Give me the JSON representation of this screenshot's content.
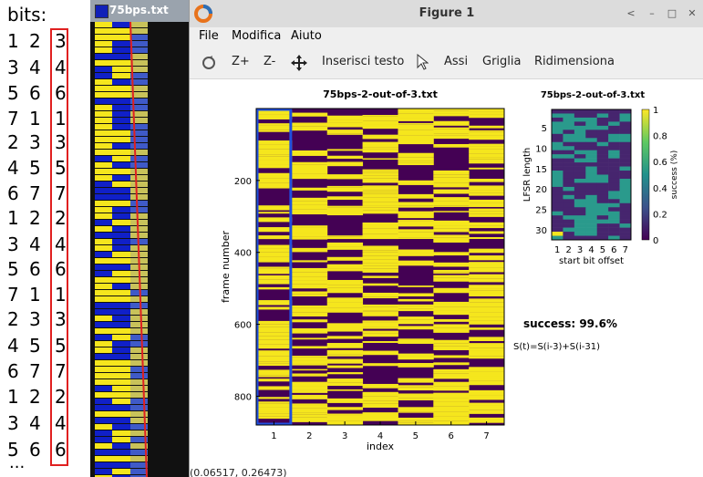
{
  "annotation": {
    "title": "bits:",
    "rows": [
      [
        "1",
        "2",
        "3"
      ],
      [
        "3",
        "4",
        "4"
      ],
      [
        "5",
        "6",
        "6"
      ],
      [
        "7",
        "1",
        "1"
      ],
      [
        "2",
        "3",
        "3"
      ],
      [
        "4",
        "5",
        "5"
      ],
      [
        "6",
        "7",
        "7"
      ],
      [
        "1",
        "2",
        "2"
      ],
      [
        "3",
        "4",
        "4"
      ],
      [
        "5",
        "6",
        "6"
      ],
      [
        "7",
        "1",
        "1"
      ],
      [
        "2",
        "3",
        "3"
      ],
      [
        "4",
        "5",
        "5"
      ],
      [
        "6",
        "7",
        "7"
      ],
      [
        "1",
        "2",
        "2"
      ],
      [
        "3",
        "4",
        "4"
      ],
      [
        "5",
        "6",
        "6"
      ]
    ],
    "ellipsis": "..."
  },
  "side_window": {
    "title": "75bps.txt"
  },
  "figure_window": {
    "title": "Figure 1",
    "controls": {
      "back": "<",
      "minimize": "–",
      "maximize": "□",
      "close": "✕"
    },
    "menu": [
      "File",
      "Modifica",
      "Aiuto"
    ],
    "toolbar": {
      "z_plus": "Z+",
      "z_minus": "Z-",
      "insert_text": "Inserisci testo",
      "axes": "Assi",
      "grid": "Griglia",
      "resize": "Ridimensiona"
    },
    "status": "(0.06517, 0.26473)"
  },
  "colors": {
    "yellow": "#f5e61d",
    "purple": "#3b0f56",
    "teal": "#2a9a8c",
    "dark_purple": "#440154",
    "highlight_blue": "#1f4fe0",
    "red": "#e02020"
  },
  "chart_data": [
    {
      "type": "heatmap",
      "title": "75bps-2-out-of-3.txt",
      "xlabel": "index",
      "ylabel": "frame number",
      "x_ticks": [
        "1",
        "2",
        "3",
        "4",
        "5",
        "6",
        "7"
      ],
      "y_ticks": [
        "200",
        "400",
        "600",
        "800"
      ],
      "y_range": [
        0,
        880
      ],
      "highlight_column": "1",
      "values": "binary 0/1 stripes per frame (yellow=1, dark purple=0)"
    },
    {
      "type": "heatmap",
      "title": "75bps-2-out-of-3.txt",
      "xlabel": "start bit offset",
      "ylabel": "LFSR length",
      "x_ticks": [
        "1",
        "2",
        "3",
        "4",
        "5",
        "6",
        "7"
      ],
      "y_ticks": [
        "5",
        "10",
        "15",
        "20",
        "25",
        "30"
      ],
      "colorbar_label": "success (%)",
      "colorbar_ticks": [
        "0",
        "0.2",
        "0.4",
        "0.6",
        "0.8",
        "1"
      ]
    }
  ],
  "result": {
    "success": "success: 99.6%",
    "formula": "S(t)=S(i-3)+S(i-31)"
  }
}
